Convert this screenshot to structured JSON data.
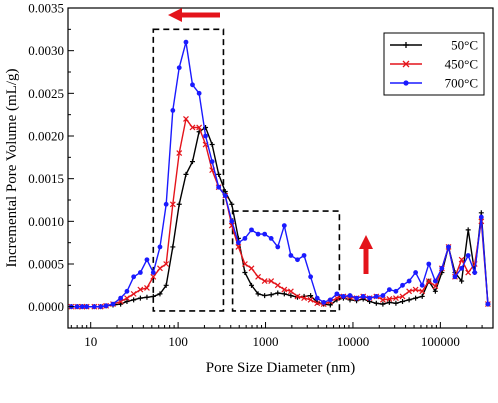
{
  "chart_data": {
    "type": "line",
    "xlabel": "Pore Size Diameter (nm)",
    "ylabel": "Incremental Pore Volume (mL/g)",
    "xscale": "log",
    "xlim": [
      5.5,
      400000
    ],
    "ylim": [
      -0.00025,
      0.0035
    ],
    "x_ticks": [
      {
        "value": 10,
        "label": "10"
      },
      {
        "value": 100,
        "label": "100"
      },
      {
        "value": 1000,
        "label": "1000"
      },
      {
        "value": 10000,
        "label": "10000"
      },
      {
        "value": 100000,
        "label": "100000"
      }
    ],
    "y_ticks": [
      {
        "value": 0,
        "label": "0.0000"
      },
      {
        "value": 0.0005,
        "label": "0.0005"
      },
      {
        "value": 0.001,
        "label": "0.0010"
      },
      {
        "value": 0.0015,
        "label": "0.0015"
      },
      {
        "value": 0.002,
        "label": "0.0020"
      },
      {
        "value": 0.0025,
        "label": "0.0025"
      },
      {
        "value": 0.003,
        "label": "0.0030"
      },
      {
        "value": 0.0035,
        "label": "0.0035"
      }
    ],
    "legend_position": "top-right",
    "grid": false,
    "series": [
      {
        "name": "50°C",
        "color": "#000000",
        "marker": "plus",
        "x": [
          6,
          7,
          8,
          9,
          11,
          13,
          15,
          18,
          22,
          26,
          31,
          37,
          44,
          52,
          62,
          73,
          87,
          103,
          123,
          146,
          174,
          206,
          245,
          291,
          346,
          411,
          489,
          581,
          691,
          822,
          977,
          1160,
          1380,
          1640,
          1950,
          2320,
          2760,
          3280,
          3900,
          4630,
          5510,
          6550,
          7780,
          9250,
          11000,
          13100,
          15500,
          18500,
          22000,
          26100,
          31000,
          36900,
          43900,
          52100,
          62000,
          73700,
          87600,
          104000,
          124000,
          147000,
          175000,
          208000,
          247000,
          294000,
          350000
        ],
        "y": [
          0,
          0,
          0,
          0,
          0,
          0,
          1e-05,
          2e-05,
          3e-05,
          6e-05,
          8e-05,
          0.0001,
          0.00011,
          0.00012,
          0.00015,
          0.00025,
          0.0007,
          0.0012,
          0.00155,
          0.0017,
          0.00205,
          0.0021,
          0.0019,
          0.00155,
          0.00135,
          0.0012,
          0.0008,
          0.0004,
          0.00025,
          0.00015,
          0.00013,
          0.00014,
          0.00016,
          0.00015,
          0.00013,
          0.00011,
          0.00012,
          0.00013,
          5e-05,
          3e-05,
          2e-05,
          8e-05,
          0.0001,
          8e-05,
          7e-05,
          9e-05,
          6e-05,
          4e-05,
          3e-05,
          5e-05,
          4e-05,
          6e-05,
          8e-05,
          0.0001,
          0.00012,
          0.0003,
          0.00018,
          0.0004,
          0.0007,
          0.0004,
          0.0003,
          0.0009,
          0.0004,
          0.0011,
          3e-05
        ]
      },
      {
        "name": "450°C",
        "color": "#e4141b",
        "marker": "x",
        "x": [
          6,
          7,
          8,
          9,
          11,
          13,
          15,
          18,
          22,
          26,
          31,
          37,
          44,
          52,
          62,
          73,
          87,
          103,
          123,
          146,
          174,
          206,
          245,
          291,
          346,
          411,
          489,
          581,
          691,
          822,
          977,
          1160,
          1380,
          1640,
          1950,
          2320,
          2760,
          3280,
          3900,
          4630,
          5510,
          6550,
          7780,
          9250,
          11000,
          13100,
          15500,
          18500,
          22000,
          26100,
          31000,
          36900,
          43900,
          52100,
          62000,
          73700,
          87600,
          104000,
          124000,
          147000,
          175000,
          208000,
          247000,
          294000,
          350000
        ],
        "y": [
          0,
          0,
          0,
          0,
          0,
          0,
          1e-05,
          3e-05,
          6e-05,
          0.0001,
          0.00015,
          0.0002,
          0.00022,
          0.00035,
          0.00045,
          0.0005,
          0.0012,
          0.0018,
          0.0022,
          0.0021,
          0.0021,
          0.0019,
          0.0016,
          0.0014,
          0.0013,
          0.00095,
          0.0007,
          0.0005,
          0.00045,
          0.00035,
          0.0003,
          0.0003,
          0.00025,
          0.0002,
          0.00018,
          0.00012,
          0.0001,
          8e-05,
          4e-05,
          3e-05,
          6e-05,
          0.0001,
          0.00012,
          0.00011,
          0.0001,
          0.00012,
          0.0001,
          0.00012,
          8e-05,
          9e-05,
          0.0001,
          0.00012,
          0.00018,
          0.0002,
          0.00018,
          0.0003,
          0.00024,
          0.00045,
          0.0007,
          0.00035,
          0.00055,
          0.0004,
          0.0005,
          0.001,
          3e-05
        ]
      },
      {
        "name": "700°C",
        "color": "#1a1aff",
        "marker": "circle",
        "x": [
          6,
          7,
          8,
          9,
          11,
          13,
          15,
          18,
          22,
          26,
          31,
          37,
          44,
          52,
          62,
          73,
          87,
          103,
          123,
          146,
          174,
          206,
          245,
          291,
          346,
          411,
          489,
          581,
          691,
          822,
          977,
          1160,
          1380,
          1640,
          1950,
          2320,
          2760,
          3280,
          3900,
          4630,
          5510,
          6550,
          7780,
          9250,
          11000,
          13100,
          15500,
          18500,
          22000,
          26100,
          31000,
          36900,
          43900,
          52100,
          62000,
          73700,
          87600,
          104000,
          124000,
          147000,
          175000,
          208000,
          247000,
          294000,
          350000
        ],
        "y": [
          0,
          0,
          0,
          0,
          0,
          0,
          1e-05,
          3e-05,
          0.0001,
          0.00018,
          0.00035,
          0.0004,
          0.00055,
          0.0004,
          0.0007,
          0.0012,
          0.0023,
          0.0028,
          0.0031,
          0.0026,
          0.0025,
          0.002,
          0.0017,
          0.0014,
          0.0013,
          0.001,
          0.00075,
          0.0008,
          0.0009,
          0.00085,
          0.00085,
          0.0008,
          0.0007,
          0.00095,
          0.0006,
          0.00055,
          0.0006,
          0.00035,
          0.0001,
          5e-05,
          8e-05,
          0.00015,
          0.00012,
          0.00013,
          0.0001,
          0.00012,
          0.0001,
          0.00012,
          0.00013,
          0.0002,
          0.00018,
          0.00025,
          0.0003,
          0.0004,
          0.00025,
          0.0005,
          0.0003,
          0.00045,
          0.0007,
          0.00035,
          0.00045,
          0.0006,
          0.0004,
          0.00105,
          3e-05
        ]
      }
    ],
    "annotations": [
      {
        "type": "dashed-box",
        "x": [
          52,
          330
        ],
        "y": [
          -5e-05,
          0.00325
        ]
      },
      {
        "type": "dashed-box",
        "x": [
          420,
          7000
        ],
        "y": [
          -5e-05,
          0.00112
        ]
      },
      {
        "type": "arrow",
        "direction": "left",
        "color": "#e4141b"
      },
      {
        "type": "arrow",
        "direction": "up",
        "color": "#e4141b"
      }
    ]
  }
}
